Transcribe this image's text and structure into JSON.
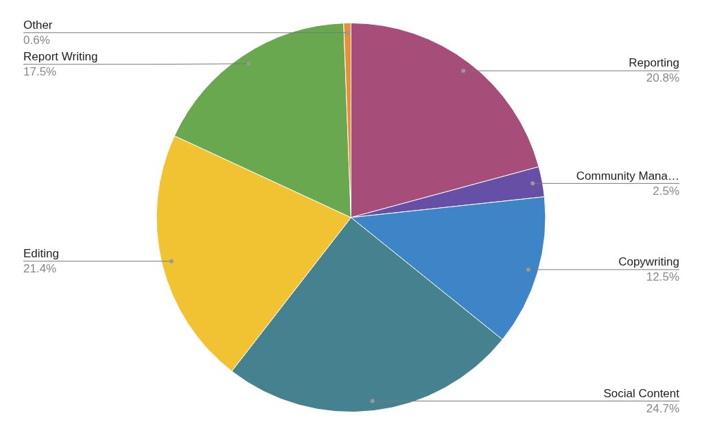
{
  "chart_data": {
    "type": "pie",
    "categories": [
      "Reporting",
      "Community Mana…",
      "Copywriting",
      "Social Content",
      "Editing",
      "Report Writing",
      "Other"
    ],
    "values": [
      20.8,
      2.5,
      12.5,
      24.7,
      21.4,
      17.5,
      0.6
    ],
    "value_labels": [
      "20.8%",
      "2.5%",
      "12.5%",
      "24.7%",
      "21.4%",
      "17.5%",
      "0.6%"
    ],
    "colors": [
      "#a64d79",
      "#674ea7",
      "#3d85c6",
      "#45818e",
      "#f1c232",
      "#6aa84f",
      "#e69138"
    ],
    "legend": false
  }
}
